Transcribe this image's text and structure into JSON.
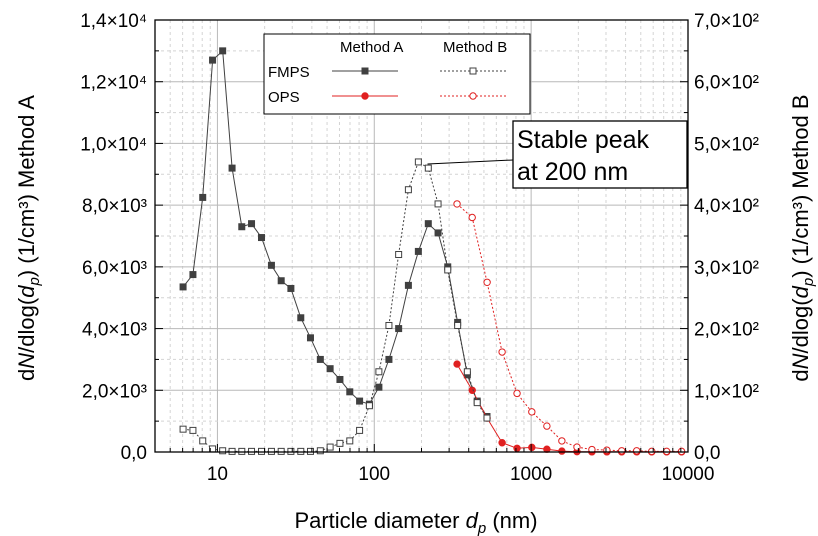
{
  "chart_data": {
    "type": "line",
    "xscale": "log",
    "xlim": [
      4,
      10000
    ],
    "xlabel": "Particle diameter d_p (nm)",
    "ylabel_left": "dN/dlog(d_p) (1/cm³) Method A",
    "ylabel_right": "dN/dlog(d_p) (1/cm³) Method B",
    "ylim_left": [
      0,
      14000
    ],
    "ylim_right": [
      0,
      700
    ],
    "grid": true,
    "legend_position": "top-center",
    "x_ticks": [
      {
        "value": 10,
        "label": "10"
      },
      {
        "value": 100,
        "label": "100"
      },
      {
        "value": 1000,
        "label": "1000"
      },
      {
        "value": 10000,
        "label": "10000"
      }
    ],
    "y_left_ticks": [
      {
        "value": 0,
        "label": "0,0"
      },
      {
        "value": 2000,
        "label": "2,0×10³"
      },
      {
        "value": 4000,
        "label": "4,0×10³"
      },
      {
        "value": 6000,
        "label": "6,0×10³"
      },
      {
        "value": 8000,
        "label": "8,0×10³"
      },
      {
        "value": 10000,
        "label": "1,0×10⁴"
      },
      {
        "value": 12000,
        "label": "1,2×10⁴"
      },
      {
        "value": 14000,
        "label": "1,4×10⁴"
      }
    ],
    "y_right_ticks": [
      {
        "value": 0,
        "label": "0,0"
      },
      {
        "value": 100,
        "label": "1,0×10²"
      },
      {
        "value": 200,
        "label": "2,0×10²"
      },
      {
        "value": 300,
        "label": "3,0×10²"
      },
      {
        "value": 400,
        "label": "4,0×10²"
      },
      {
        "value": 500,
        "label": "5,0×10²"
      },
      {
        "value": 600,
        "label": "6,0×10²"
      },
      {
        "value": 700,
        "label": "7,0×10²"
      }
    ],
    "legend": {
      "col_a": "Method A",
      "col_b": "Method B",
      "row_1": "FMPS",
      "row_2": "OPS"
    },
    "annotation": {
      "line1": "Stable peak",
      "line2": "at 200 nm",
      "x": 200,
      "y": 470
    },
    "series": [
      {
        "instrument": "FMPS",
        "method": "Method A",
        "axis": "left",
        "color": "#404040",
        "marker": "square-filled",
        "dash": "solid",
        "x": [
          6.04,
          6.98,
          8.06,
          9.31,
          10.8,
          12.4,
          14.3,
          16.5,
          19.1,
          22.1,
          25.5,
          29.4,
          34.0,
          39.2,
          45.3,
          52.3,
          60.4,
          69.8,
          80.6,
          93.1,
          107,
          124,
          143,
          165,
          191,
          221,
          255,
          294,
          340,
          392,
          453,
          523
        ],
        "values": [
          5350,
          5750,
          8250,
          12700,
          13000,
          9200,
          7300,
          7400,
          6950,
          6050,
          5550,
          5300,
          4350,
          3700,
          3000,
          2700,
          2350,
          1950,
          1650,
          1550,
          2100,
          3000,
          4000,
          5400,
          6500,
          7400,
          7100,
          6000,
          4200,
          2500,
          1650,
          1150
        ]
      },
      {
        "instrument": "OPS",
        "method": "Method A",
        "axis": "left",
        "color": "#e02020",
        "marker": "circle-filled",
        "dash": "solid",
        "x": [
          337,
          421,
          524,
          653,
          813,
          1010,
          1260,
          1570,
          1960,
          2440,
          3040,
          3780,
          4710,
          5870,
          7310,
          9100
        ],
        "values": [
          2850,
          2000,
          1100,
          300,
          120,
          150,
          90,
          30,
          10,
          5,
          5,
          5,
          5,
          5,
          5,
          5
        ]
      },
      {
        "instrument": "FMPS",
        "method": "Method B",
        "axis": "right",
        "color": "#404040",
        "marker": "square-open",
        "dash": "dotted",
        "x": [
          6.04,
          6.98,
          8.06,
          9.31,
          10.8,
          12.4,
          14.3,
          16.5,
          19.1,
          22.1,
          25.5,
          29.4,
          34.0,
          39.2,
          45.3,
          52.3,
          60.4,
          69.8,
          80.6,
          93.1,
          107,
          124,
          143,
          165,
          191,
          221,
          255,
          294,
          340,
          392,
          453,
          523
        ],
        "values": [
          37,
          35,
          18,
          5,
          2,
          1,
          1,
          1,
          1,
          1,
          1,
          1,
          1,
          1,
          2,
          8,
          14,
          18,
          35,
          75,
          130,
          205,
          320,
          425,
          470,
          460,
          402,
          295,
          205,
          130,
          80,
          55
        ]
      },
      {
        "instrument": "OPS",
        "method": "Method B",
        "axis": "right",
        "color": "#e02020",
        "marker": "circle-open",
        "dash": "dotted",
        "x": [
          337,
          421,
          524,
          653,
          813,
          1010,
          1260,
          1570,
          1960,
          2440,
          3040,
          3780,
          4710,
          5870,
          7310,
          9100
        ],
        "values": [
          402,
          380,
          275,
          162,
          95,
          65,
          42,
          18,
          8,
          4,
          3,
          2,
          2,
          1,
          1,
          1
        ]
      }
    ]
  }
}
